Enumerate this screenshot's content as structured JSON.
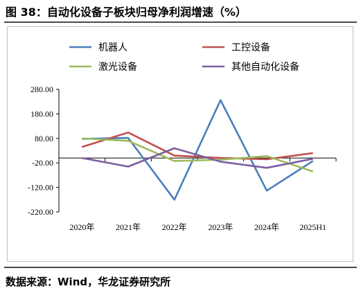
{
  "header": {
    "title": "图 38：自动化设备子板块归母净利润增速（%）"
  },
  "footer": {
    "source": "数据来源：Wind，华龙证券研究所"
  },
  "chart_data": {
    "type": "line",
    "title": "图 38：自动化设备子板块归母净利润增速（%）",
    "categories": [
      "2020年",
      "2021年",
      "2022年",
      "2023年",
      "2024年",
      "2025H1"
    ],
    "y_ticks": [
      "280.00",
      "180.00",
      "80.00",
      "-20.00",
      "-120.00",
      "-220.00"
    ],
    "ylim": [
      -220,
      280
    ],
    "zero_line": 0,
    "grid": false,
    "legend_position": "top",
    "series": [
      {
        "name": "机器人",
        "color": "#4a7ebb",
        "values": [
          78,
          82,
          -170,
          236,
          -133,
          -12
        ]
      },
      {
        "name": "工控设备",
        "color": "#c0504d",
        "values": [
          45,
          104,
          10,
          0,
          -5,
          20
        ]
      },
      {
        "name": "激光设备",
        "color": "#9bbb59",
        "values": [
          80,
          70,
          -12,
          -7,
          8,
          -55
        ]
      },
      {
        "name": "其他自动化设备",
        "color": "#7b5ea1",
        "values": [
          0,
          -35,
          40,
          -15,
          -40,
          -3
        ]
      }
    ]
  }
}
